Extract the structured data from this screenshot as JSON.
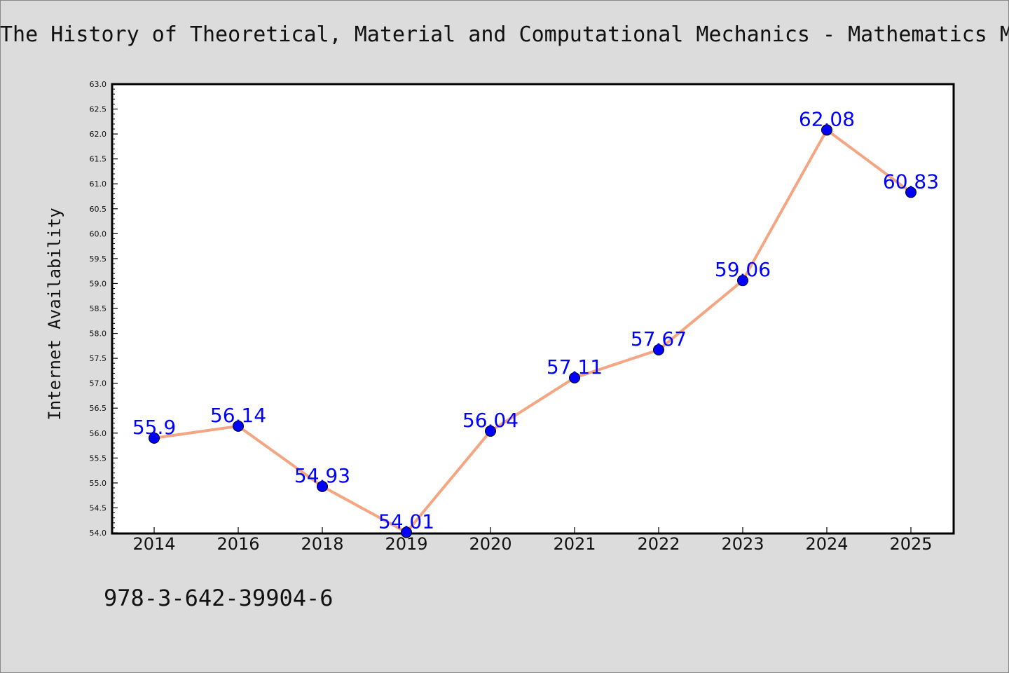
{
  "header": {
    "title": "The History of Theoretical, Material and Computational Mechanics - Mathematics M"
  },
  "footer": {
    "isbn": "978-3-642-39904-6"
  },
  "colors": {
    "background": "#dcdcdc",
    "plot_background": "#ffffff",
    "line": "#f4a582",
    "marker": "#0000ff",
    "data_label": "#0000ff"
  },
  "chart_data": {
    "type": "line",
    "title": "The History of Theoretical, Material and Computational Mechanics - Mathematics M",
    "xlabel": "",
    "ylabel": "Internet Availability",
    "categories": [
      "2014",
      "2016",
      "2018",
      "2019",
      "2020",
      "2021",
      "2022",
      "2023",
      "2024",
      "2025"
    ],
    "series": [
      {
        "values": [
          55.9,
          56.14,
          54.93,
          54.01,
          56.04,
          57.11,
          57.67,
          59.06,
          62.08,
          60.83
        ],
        "data_labels": [
          "55.9",
          "56.14",
          "54.93",
          "54.01",
          "56.04",
          "57.11",
          "57.67",
          "59.06",
          "62.08",
          "60.83"
        ]
      }
    ],
    "ylim": [
      54.0,
      63.0
    ],
    "yticks": [
      "54.0",
      "54.5",
      "55.0",
      "55.5",
      "56.0",
      "56.5",
      "57.0",
      "57.5",
      "58.0",
      "58.5",
      "59.0",
      "59.5",
      "60.0",
      "60.5",
      "61.0",
      "61.5",
      "62.0",
      "62.5",
      "63.0"
    ],
    "grid": false,
    "legend": "none"
  }
}
